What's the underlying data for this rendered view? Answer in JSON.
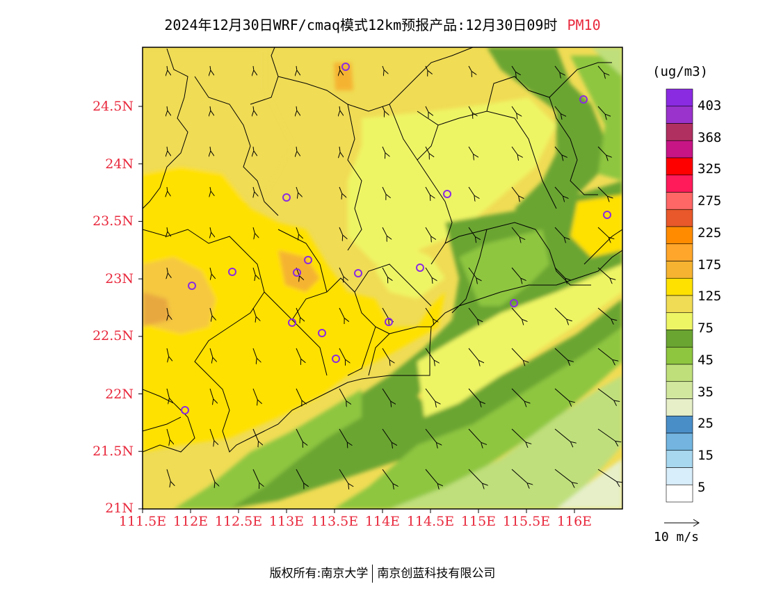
{
  "title": {
    "main": "2024年12月30日WRF/cmaq模式12km预报产品:12月30日09时",
    "variable": "PM10"
  },
  "map": {
    "lat_labels": [
      "24.5N",
      "24N",
      "23.5N",
      "23N",
      "22.5N",
      "22N",
      "21.5N",
      "21N"
    ],
    "lon_labels": [
      "111.5E",
      "112E",
      "112.5E",
      "113E",
      "113.5E",
      "114E",
      "114.5E",
      "115E",
      "115.5E",
      "116E"
    ],
    "colors": {
      "frame": "#000000",
      "border": "#000000",
      "station": "#8a2be2",
      "axis_label": "#e8283c"
    }
  },
  "colorbar": {
    "unit": "(ug/m3)",
    "labels": [
      "403",
      "368",
      "325",
      "275",
      "225",
      "175",
      "125",
      "75",
      "45",
      "35",
      "25",
      "15",
      "5"
    ],
    "bins": [
      "#8a2be2",
      "#9933cc",
      "#b03060",
      "#c71585",
      "#ff0000",
      "#ff1a5a",
      "#ff6666",
      "#e8582a",
      "#ff8c00",
      "#ffa62b",
      "#f5b331",
      "#ffe100",
      "#f0dc55",
      "#eef565",
      "#6aa532",
      "#8ec640",
      "#bfdf7b",
      "#d2e79e",
      "#e6efc8",
      "#4a8ec8",
      "#73b5e0",
      "#a8d8f0",
      "#d8eefa",
      "#ffffff"
    ]
  },
  "wind_reference": {
    "label": "10 m/s"
  },
  "footer": {
    "left": "版权所有:南京大学",
    "right": "南京创蓝科技有限公司"
  }
}
